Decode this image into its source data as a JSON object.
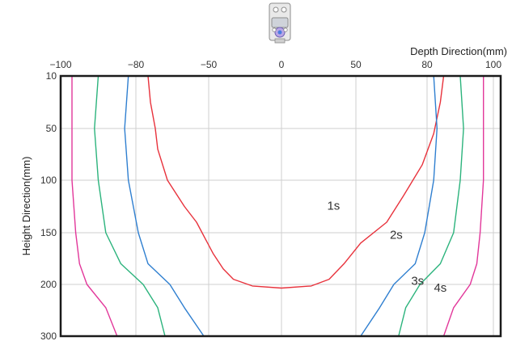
{
  "colors": {
    "background": "#ffffff",
    "plot_border": "#1a1a1a",
    "grid": "#cfcfcf",
    "sensor_icon": "sensor-device-icon"
  },
  "chart_data": {
    "type": "line",
    "title": "",
    "xlabel": "Depth Direction(mm)",
    "ylabel": "Height Direction(mm)",
    "x_axis_position": "top",
    "y_axis_inverted": true,
    "grid": true,
    "legend": "inline labels near curves",
    "xlim": [
      -100,
      100
    ],
    "ylim": [
      10,
      300
    ],
    "x_ticks": [
      {
        "value": -100,
        "label": "−100"
      },
      {
        "value": -80,
        "label": "−80"
      },
      {
        "value": -50,
        "label": "−50"
      },
      {
        "value": 0,
        "label": "0"
      },
      {
        "value": 50,
        "label": "50"
      },
      {
        "value": 80,
        "label": "80"
      },
      {
        "value": 100,
        "label": "100"
      }
    ],
    "y_ticks": [
      {
        "value": 10,
        "label": "10"
      },
      {
        "value": 50,
        "label": "50"
      },
      {
        "value": 100,
        "label": "100"
      },
      {
        "value": 150,
        "label": "150"
      },
      {
        "value": 200,
        "label": "200"
      },
      {
        "value": 300,
        "label": "300"
      }
    ],
    "series": [
      {
        "name": "1s",
        "color": "#e8323c",
        "points": [
          [
            -75,
            10
          ],
          [
            -74,
            30
          ],
          [
            -72,
            50
          ],
          [
            -71,
            70
          ],
          [
            -67,
            100
          ],
          [
            -60,
            125
          ],
          [
            -55,
            140
          ],
          [
            -47,
            170
          ],
          [
            -40,
            185
          ],
          [
            -33,
            195
          ],
          [
            -20,
            203
          ],
          [
            0,
            207
          ],
          [
            20,
            203
          ],
          [
            32,
            195
          ],
          [
            42,
            180
          ],
          [
            52,
            160
          ],
          [
            63,
            140
          ],
          [
            70,
            115
          ],
          [
            78,
            85
          ],
          [
            82,
            55
          ],
          [
            84,
            30
          ],
          [
            85,
            10
          ]
        ]
      },
      {
        "name": "2s",
        "color": "#2f7fd0",
        "points": [
          [
            -82,
            10
          ],
          [
            -83,
            50
          ],
          [
            -82,
            100
          ],
          [
            -79,
            150
          ],
          [
            -75,
            180
          ],
          [
            -66,
            200
          ],
          [
            -60,
            245
          ],
          [
            -52,
            300
          ]
        ]
      },
      {
        "name": "3s",
        "color": "#2bb37c",
        "points": [
          [
            -90,
            10
          ],
          [
            -91,
            50
          ],
          [
            -90,
            100
          ],
          [
            -88,
            150
          ],
          [
            -84,
            180
          ],
          [
            -77,
            200
          ],
          [
            -71,
            245
          ],
          [
            -68,
            300
          ]
        ]
      },
      {
        "name": "4s",
        "color": "#e2379a",
        "points": [
          [
            -97,
            10
          ],
          [
            -97,
            50
          ],
          [
            -97,
            100
          ],
          [
            -96,
            150
          ],
          [
            -95,
            180
          ],
          [
            -93,
            200
          ],
          [
            -88,
            245
          ],
          [
            -85,
            300
          ]
        ]
      }
    ],
    "series_labels": [
      {
        "text": "1s",
        "x": 35,
        "y": 128
      },
      {
        "text": "2s",
        "x": 67,
        "y": 156
      },
      {
        "text": "3s",
        "x": 76,
        "y": 201
      },
      {
        "text": "4s",
        "x": 84,
        "y": 214
      }
    ]
  }
}
